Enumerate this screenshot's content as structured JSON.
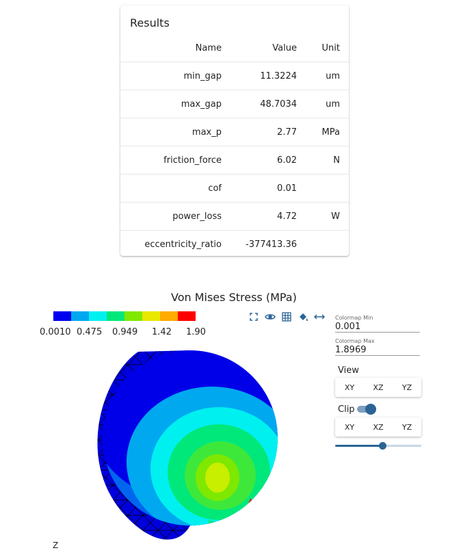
{
  "results": {
    "title": "Results",
    "headers": {
      "name": "Name",
      "value": "Value",
      "unit": "Unit"
    },
    "rows": [
      {
        "name": "min_gap",
        "value": "11.3224",
        "unit": "um"
      },
      {
        "name": "max_gap",
        "value": "48.7034",
        "unit": "um"
      },
      {
        "name": "max_p",
        "value": "2.77",
        "unit": "MPa"
      },
      {
        "name": "friction_force",
        "value": "6.02",
        "unit": "N"
      },
      {
        "name": "cof",
        "value": "0.01",
        "unit": ""
      },
      {
        "name": "power_loss",
        "value": "4.72",
        "unit": "W"
      },
      {
        "name": "eccentricity_ratio",
        "value": "-377413.36",
        "unit": ""
      }
    ]
  },
  "viewer": {
    "title": "Von Mises Stress (MPa)",
    "colorbar_colors": [
      "#0000ee",
      "#00a8f0",
      "#00f0f0",
      "#00e87a",
      "#7fe800",
      "#e8e800",
      "#ffaa00",
      "#ff0000"
    ],
    "colorbar_ticks": [
      "0.0010",
      "0.475",
      "0.949",
      "1.42",
      "1.90"
    ],
    "toolbar_icons": [
      "fullscreen-icon",
      "eye-icon",
      "grid-icon",
      "paint-bucket-icon",
      "resize-horizontal-icon"
    ],
    "accent_color": "#2a6496",
    "colormap_min_label": "Colormap Min",
    "colormap_min_value": "0.001",
    "colormap_max_label": "Colormap Max",
    "colormap_max_value": "1.8969",
    "view_label": "View",
    "view_buttons": [
      "XY",
      "XZ",
      "YZ"
    ],
    "clip_label": "Clip",
    "clip_enabled": true,
    "clip_buttons": [
      "XY",
      "XZ",
      "YZ"
    ],
    "clip_slider_fraction": 0.55,
    "axis_label": "Z"
  }
}
